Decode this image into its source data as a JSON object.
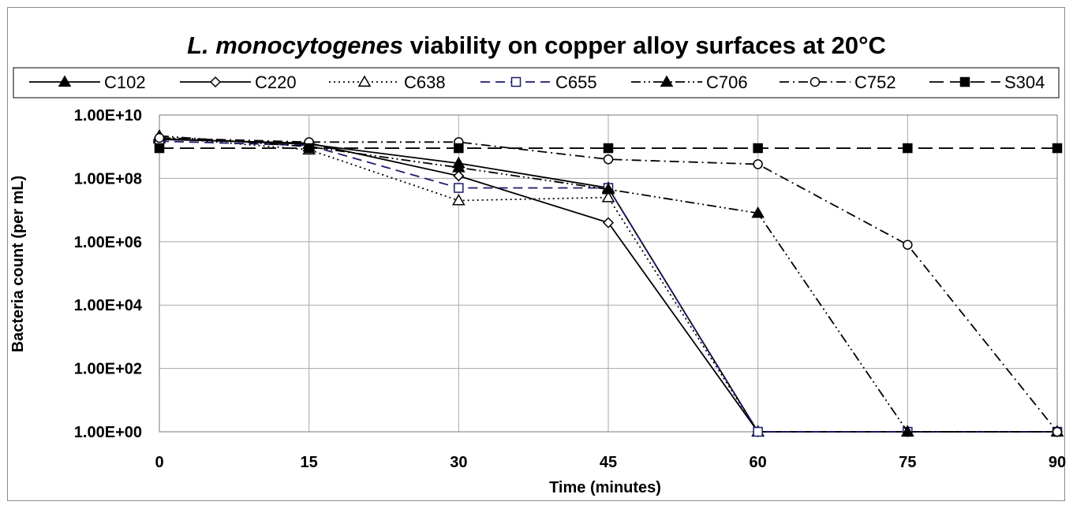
{
  "chart_data": {
    "type": "line",
    "title_italic": "L. monocytogenes",
    "title_rest": " viability on copper alloy surfaces at 20°C",
    "xlabel": "Time (minutes)",
    "ylabel": "Bacteria count (per mL)",
    "y_scale": "log",
    "x": [
      0,
      15,
      30,
      45,
      60,
      75,
      90
    ],
    "xlim": [
      0,
      90
    ],
    "ylim": [
      1,
      10000000000
    ],
    "x_ticks": [
      "0",
      "15",
      "30",
      "45",
      "60",
      "75",
      "90"
    ],
    "y_ticks": [
      "1.00E+00",
      "1.00E+02",
      "1.00E+04",
      "1.00E+06",
      "1.00E+08",
      "1.00E+10"
    ],
    "y_tick_values": [
      1,
      100,
      10000,
      1000000,
      100000000,
      10000000000
    ],
    "grid": true,
    "legend_position": "top",
    "series": [
      {
        "name": "C102",
        "values": [
          1800000000,
          1200000000,
          300000000,
          50000000,
          1,
          1,
          1
        ],
        "line_style": "solid",
        "marker": "triangle-filled",
        "color": "#000000"
      },
      {
        "name": "C220",
        "values": [
          1700000000,
          1300000000,
          120000000,
          4000000,
          1,
          1,
          1
        ],
        "line_style": "solid",
        "marker": "diamond-open",
        "color": "#000000"
      },
      {
        "name": "C638",
        "values": [
          2000000000,
          800000000,
          20000000,
          25000000,
          1,
          1,
          1
        ],
        "line_style": "dotted",
        "marker": "triangle-open",
        "color": "#000000"
      },
      {
        "name": "C655",
        "values": [
          1500000000,
          1100000000,
          50000000,
          50000000,
          1,
          1,
          1
        ],
        "line_style": "dashed",
        "marker": "square-open",
        "color": "#1a1a6e"
      },
      {
        "name": "C706",
        "values": [
          2200000000,
          1000000000,
          220000000,
          45000000,
          8000000,
          1,
          1
        ],
        "line_style": "dashdotdot",
        "marker": "triangle-filled",
        "color": "#000000"
      },
      {
        "name": "C752",
        "values": [
          1900000000,
          1400000000,
          1400000000,
          400000000,
          280000000,
          800000,
          1
        ],
        "line_style": "dashdot",
        "marker": "circle-open",
        "color": "#000000"
      },
      {
        "name": "S304",
        "values": [
          900000000,
          900000000,
          900000000,
          900000000,
          900000000,
          900000000,
          900000000
        ],
        "line_style": "longdash",
        "marker": "square-filled",
        "color": "#000000"
      }
    ]
  }
}
